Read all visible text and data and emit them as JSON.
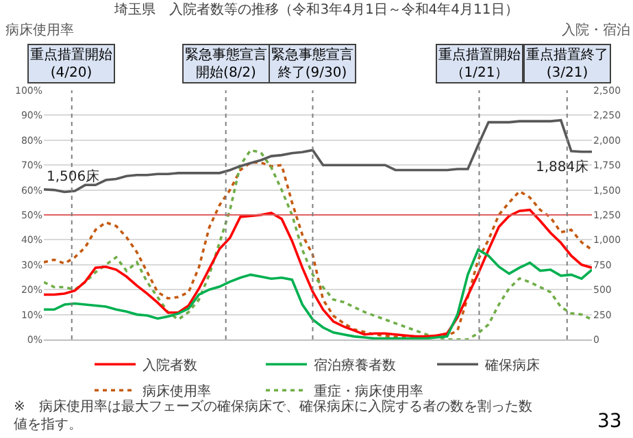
{
  "chart_data": {
    "type": "line",
    "title": "埼玉県　入院者数等の推移（令和3年4月1日～令和4年4月11日）",
    "ylabel": "病床使用率",
    "y2label": "入院・宿泊",
    "categories": [
      null,
      null,
      null,
      null,
      null,
      null,
      null,
      null,
      null,
      null,
      null,
      null,
      null,
      null,
      null,
      null,
      null,
      null,
      null,
      null,
      null,
      null,
      null,
      null,
      null,
      null,
      null,
      null,
      null,
      null,
      null,
      null,
      null,
      null,
      null,
      null,
      null,
      null,
      null,
      null,
      null,
      null,
      null,
      null,
      null,
      null,
      null,
      null,
      null,
      null,
      null,
      null,
      null,
      null
    ],
    "ylim": [
      0,
      100
    ],
    "yticks": [
      {
        "value": 0,
        "label": "0%"
      },
      {
        "value": 10,
        "label": "10%"
      },
      {
        "value": 20,
        "label": "20%"
      },
      {
        "value": 30,
        "label": "30%"
      },
      {
        "value": 40,
        "label": "40%"
      },
      {
        "value": 50,
        "label": "50%"
      },
      {
        "value": 60,
        "label": "60%"
      },
      {
        "value": 70,
        "label": "70%"
      },
      {
        "value": 80,
        "label": "80%"
      },
      {
        "value": 90,
        "label": "90%"
      },
      {
        "value": 100,
        "label": "100%"
      }
    ],
    "y2lim": [
      0,
      2500
    ],
    "y2ticks": [
      0,
      250,
      500,
      750,
      {
        "value": 1000,
        "label": "1,000"
      },
      {
        "value": 1250,
        "label": "1,250"
      },
      {
        "value": 1500,
        "label": "1,500"
      },
      {
        "value": 1750,
        "label": "1,750"
      },
      {
        "value": 2000,
        "label": "2,000"
      },
      {
        "value": 2250,
        "label": "2,250"
      },
      {
        "value": 2500,
        "label": "2,500"
      }
    ],
    "tick_labels": "y",
    "grid": "y",
    "legend": "bottom",
    "series": [
      {
        "name": "入院者数",
        "color": "#ff0000",
        "axis": "y2",
        "line_style": "solid",
        "values": [
          450,
          450,
          460,
          490,
          580,
          720,
          730,
          700,
          630,
          540,
          460,
          370,
          270,
          270,
          340,
          510,
          710,
          910,
          1020,
          1230,
          1240,
          1250,
          1270,
          1210,
          990,
          720,
          480,
          300,
          180,
          130,
          90,
          50,
          60,
          60,
          50,
          40,
          30,
          30,
          40,
          60,
          220,
          440,
          660,
          900,
          1130,
          1240,
          1290,
          1300,
          1190,
          1070,
          970,
          840,
          750,
          720
        ]
      },
      {
        "name": "宿泊療養者数",
        "color": "#00b050",
        "axis": "y2",
        "line_style": "solid",
        "values": [
          300,
          300,
          350,
          360,
          350,
          340,
          330,
          300,
          280,
          250,
          240,
          210,
          230,
          260,
          310,
          450,
          500,
          530,
          580,
          620,
          650,
          630,
          610,
          620,
          600,
          350,
          200,
          120,
          70,
          50,
          30,
          20,
          10,
          10,
          10,
          10,
          10,
          10,
          20,
          30,
          250,
          650,
          900,
          840,
          730,
          660,
          720,
          770,
          690,
          700,
          640,
          650,
          610,
          700
        ]
      },
      {
        "name": "確保病床",
        "color": "#595959",
        "axis": "y2",
        "line_style": "solid",
        "values": [
          1506,
          1500,
          1480,
          1490,
          1550,
          1550,
          1600,
          1610,
          1640,
          1650,
          1650,
          1660,
          1660,
          1670,
          1670,
          1670,
          1670,
          1670,
          1700,
          1740,
          1770,
          1800,
          1840,
          1850,
          1870,
          1880,
          1900,
          1750,
          1750,
          1750,
          1750,
          1750,
          1750,
          1750,
          1700,
          1700,
          1700,
          1700,
          1700,
          1700,
          1710,
          1710,
          1950,
          2180,
          2180,
          2180,
          2190,
          2190,
          2190,
          2190,
          2200,
          1890,
          1884,
          1884
        ]
      },
      {
        "name": "病床使用率",
        "color": "#c55a11",
        "line_style": "dotted",
        "values": [
          31,
          32,
          30.5,
          33,
          37,
          44,
          47,
          45.5,
          41,
          35,
          27,
          19,
          16.5,
          17,
          19,
          29,
          45,
          54,
          60,
          68,
          71,
          71,
          69.5,
          70,
          55,
          42,
          34,
          16,
          9.5,
          6.5,
          4,
          3,
          2,
          1.5,
          1,
          1,
          1,
          1,
          1.5,
          1.5,
          3.5,
          17,
          32,
          40,
          50,
          55,
          59.5,
          57,
          52,
          49,
          43,
          44,
          39,
          36
        ]
      },
      {
        "name": "重症・病床使用率",
        "color": "#70ad47",
        "line_style": "dotted",
        "values": [
          23,
          21,
          21,
          20,
          23,
          27,
          30,
          33,
          27.5,
          31,
          23,
          17,
          11,
          8,
          11,
          16,
          26,
          39,
          52,
          70,
          76,
          75,
          69,
          60,
          50,
          36,
          26,
          21,
          16,
          15,
          13,
          11,
          9.5,
          8,
          6.5,
          5,
          3.5,
          2,
          1,
          0,
          0,
          0,
          2.5,
          6,
          14,
          20.5,
          24.5,
          23,
          21,
          19,
          13,
          10.5,
          10,
          8
        ]
      }
    ],
    "ref_lines": [
      {
        "axis": "y",
        "value": 50,
        "color": "#e06060",
        "line_style": "solid"
      }
    ],
    "annotations": [
      "重点措置開始(4/20)",
      "緊急事態宣言開始(8/2)",
      "緊急事態宣言終了(9/30)",
      "重点措置開始（1/21）",
      "重点措置終了(3/21)",
      "1,506床",
      "1,884床",
      "※　病床使用率は最大フェーズの確保病床で、確保病床に入院する者の数を割った数値を指す。",
      "33"
    ]
  }
}
